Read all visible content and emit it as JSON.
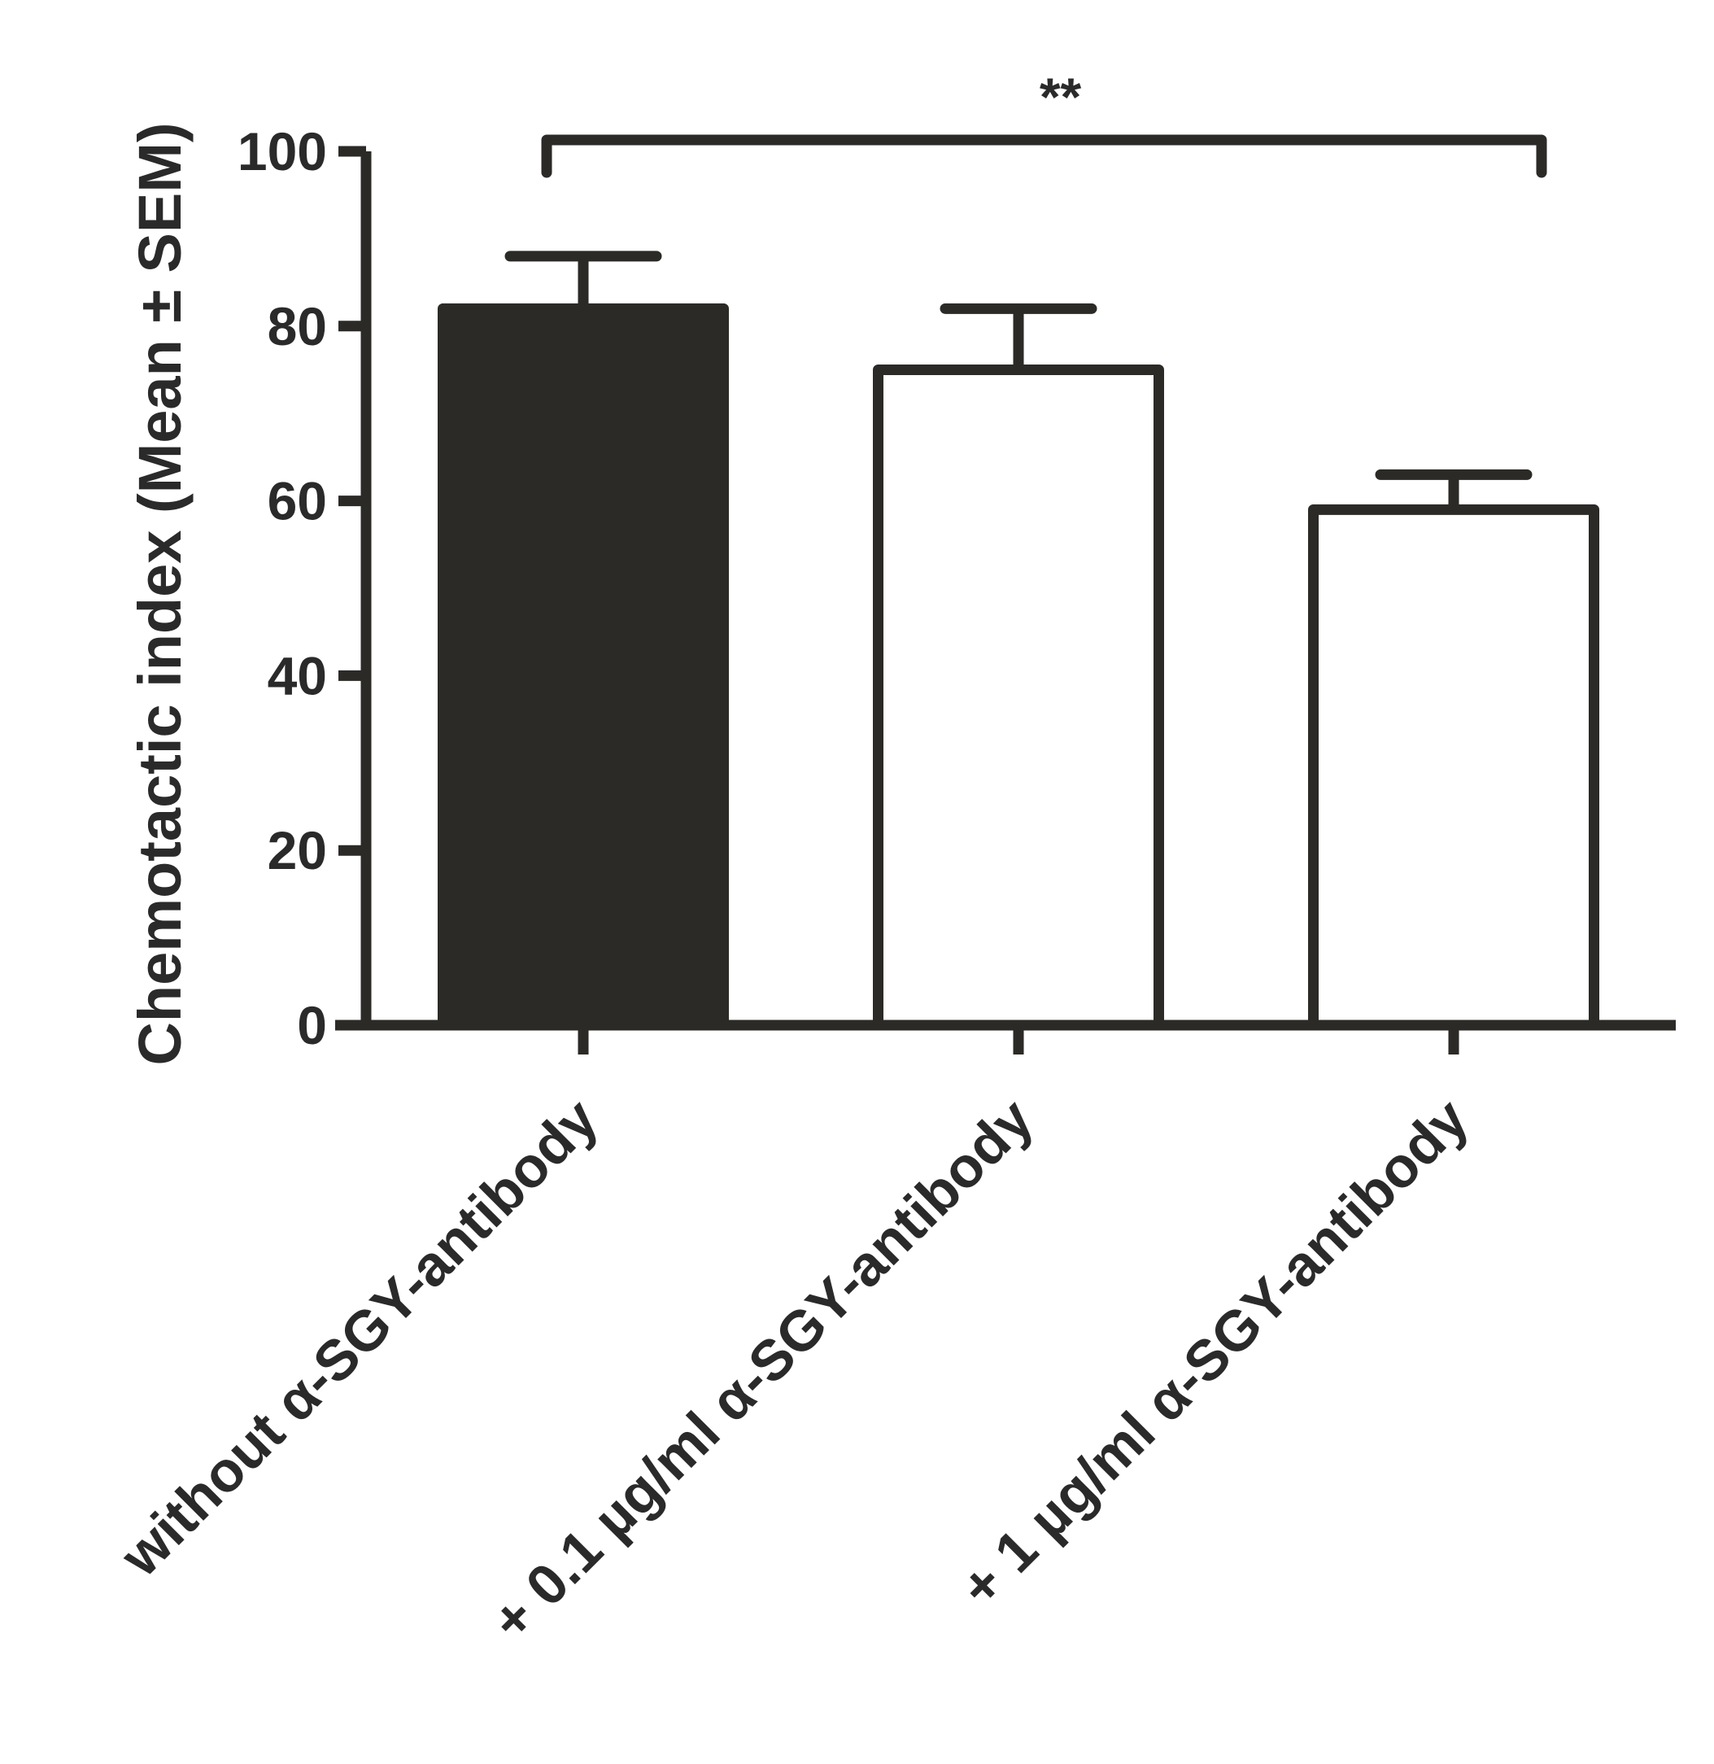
{
  "chart_data": {
    "type": "bar",
    "ylabel": "Chemotactic index (Mean ± SEM)",
    "xlabel": "",
    "ylim": [
      0,
      100
    ],
    "yticks": [
      0,
      20,
      40,
      60,
      80,
      100
    ],
    "categories": [
      "without α-SGY-antibody",
      "+ 0.1 µg/ml α-SGY-antibody",
      "+ 1 µg/ml α-SGY-antibody"
    ],
    "values": [
      82,
      75,
      59
    ],
    "errors": [
      6,
      7,
      4
    ],
    "bar_fills": [
      "#2b2a27",
      "#ffffff",
      "#ffffff"
    ],
    "significance": {
      "from": 0,
      "to": 2,
      "label": "**"
    },
    "colors": {
      "ink": "#2b2a27",
      "background": "#ffffff"
    },
    "grid": false,
    "legend": "none"
  }
}
